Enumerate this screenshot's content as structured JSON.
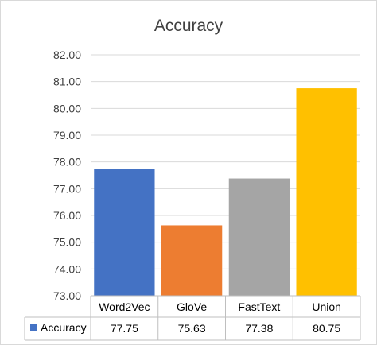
{
  "chart_data": {
    "type": "bar",
    "title": "Accuracy",
    "categories": [
      "Word2Vec",
      "GloVe",
      "FastText",
      "Union"
    ],
    "series": [
      {
        "name": "Accuracy",
        "values": [
          77.75,
          75.63,
          77.38,
          80.75
        ],
        "value_labels": [
          "77.75",
          "75.63",
          "77.38",
          "80.75"
        ]
      }
    ],
    "ylim": [
      73,
      82
    ],
    "yticks": [
      "73.00",
      "74.00",
      "75.00",
      "76.00",
      "77.00",
      "78.00",
      "79.00",
      "80.00",
      "81.00",
      "82.00"
    ],
    "bar_colors": [
      "#4472c4",
      "#ed7d31",
      "#a5a5a5",
      "#ffc000"
    ],
    "legend_color": "#4472c4",
    "grid": true,
    "legend": "data-table"
  }
}
